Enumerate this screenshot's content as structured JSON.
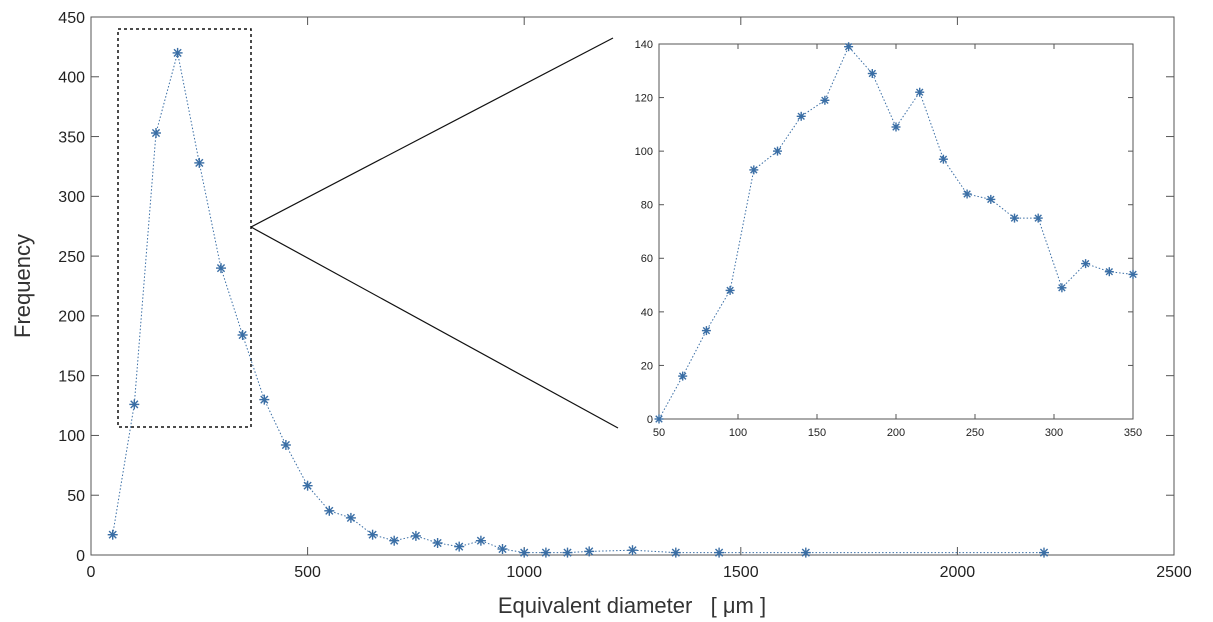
{
  "chart_data": [
    {
      "type": "scatter",
      "xlabel": "Equivalent diameter   [ μm ]",
      "ylabel": "Frequency",
      "xlim": [
        0,
        2500
      ],
      "ylim": [
        0,
        450
      ],
      "xticks": [
        0,
        500,
        1000,
        1500,
        2000,
        2500
      ],
      "yticks": [
        0,
        50,
        100,
        150,
        200,
        250,
        300,
        350,
        400,
        450
      ],
      "marker": "asterisk",
      "line_style": "dotted",
      "grid": false,
      "color": "#3a6ea5",
      "series": [
        {
          "x": [
            50,
            100,
            150,
            200,
            250,
            300,
            350,
            400,
            450,
            500,
            550,
            600,
            650,
            700,
            750,
            800,
            850,
            900,
            950,
            1000,
            1050,
            1100,
            1150,
            1250,
            1350,
            1450,
            1650,
            2200
          ],
          "values": [
            17,
            126,
            353,
            420,
            328,
            240,
            184,
            130,
            92,
            58,
            37,
            31,
            17,
            12,
            16,
            10,
            7,
            12,
            5,
            2,
            2,
            2,
            3,
            4,
            2,
            2,
            2,
            2
          ]
        }
      ],
      "highlight_box": {
        "xlim": [
          50,
          350
        ],
        "ylim": [
          105,
          440
        ]
      }
    },
    {
      "type": "scatter",
      "role": "inset",
      "xlim": [
        50,
        350
      ],
      "ylim": [
        0,
        140
      ],
      "xticks": [
        50,
        100,
        150,
        200,
        250,
        300,
        350
      ],
      "yticks": [
        0,
        20,
        40,
        60,
        80,
        100,
        120,
        140
      ],
      "marker": "asterisk",
      "line_style": "dotted",
      "grid": false,
      "color": "#3a6ea5",
      "series": [
        {
          "x": [
            50,
            65,
            80,
            95,
            110,
            125,
            140,
            155,
            170,
            185,
            200,
            215,
            230,
            245,
            260,
            275,
            290,
            305,
            320,
            335,
            350
          ],
          "values": [
            0,
            16,
            33,
            48,
            93,
            100,
            113,
            119,
            139,
            129,
            109,
            122,
            97,
            84,
            82,
            75,
            75,
            49,
            58,
            55,
            54
          ]
        }
      ]
    }
  ]
}
